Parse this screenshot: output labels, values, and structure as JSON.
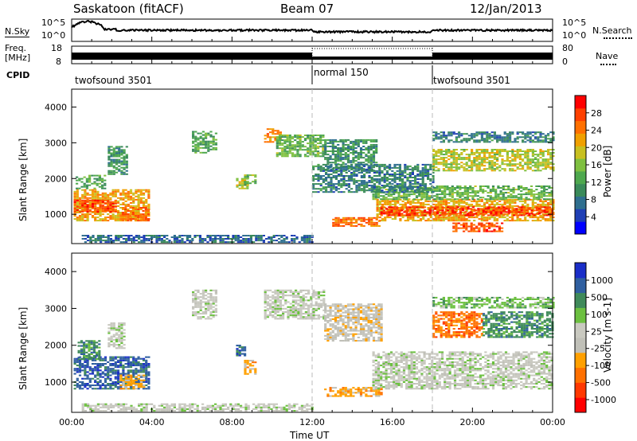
{
  "header": {
    "station": "Saskatoon (fitACF)",
    "beam": "Beam 07",
    "date": "12/Jan/2013"
  },
  "panels": {
    "nsky": {
      "left_label": "N.Sky",
      "left_ticks": [
        "10^5",
        "10^0"
      ],
      "right_ticks": [
        "10^5",
        "10^0"
      ],
      "right_label": "N.Search"
    },
    "freq": {
      "left_label_top": "Freq.",
      "left_label_bottom": "[MHz]",
      "left_ticks": [
        "18",
        "8"
      ],
      "right_ticks": [
        "80",
        "0"
      ],
      "right_label": "Nave"
    },
    "cpid": {
      "label": "CPID",
      "segments": [
        {
          "name": "twofsound 3501",
          "start_h": 0,
          "end_h": 12
        },
        {
          "name": "normal 150",
          "start_h": 12,
          "end_h": 18
        },
        {
          "name": "twofsound 3501",
          "start_h": 18,
          "end_h": 24
        }
      ]
    }
  },
  "colors": {
    "power": [
      "#0000ff",
      "#1f3fb5",
      "#2f6f8f",
      "#3a8a5a",
      "#4ea84e",
      "#7fc040",
      "#c8c020",
      "#f0a000",
      "#ff7000",
      "#ff4000",
      "#ff0000"
    ],
    "velocity": [
      "#1a2ec8",
      "#2f5fa0",
      "#3f8a5a",
      "#6cc040",
      "#c9c9c0",
      "#c0c0b8",
      "#ffa000",
      "#ff7000",
      "#ff3800",
      "#ff0000"
    ]
  },
  "chart_data": [
    {
      "type": "heatmap",
      "name": "power",
      "ylabel": "Slant Range [km]",
      "xlim": [
        0,
        24
      ],
      "ylim": [
        180,
        4500
      ],
      "yticks": [
        1000,
        2000,
        3000,
        4000
      ],
      "colorbar": {
        "label": "Power [dB]",
        "range": [
          0,
          32
        ],
        "ticks": [
          4,
          8,
          12,
          16,
          20,
          24,
          28
        ]
      },
      "regions": [
        {
          "t0": 0.1,
          "t1": 3.8,
          "r0": 800,
          "r1": 1700,
          "value": 22
        },
        {
          "t0": 0.1,
          "t1": 2.2,
          "r0": 1050,
          "r1": 1400,
          "value": 28
        },
        {
          "t0": 2.5,
          "t1": 3.8,
          "r0": 800,
          "r1": 1200,
          "value": 26
        },
        {
          "t0": 0.2,
          "t1": 1.6,
          "r0": 1700,
          "r1": 2100,
          "value": 12
        },
        {
          "t0": 1.8,
          "t1": 2.8,
          "r0": 2100,
          "r1": 2900,
          "value": 10
        },
        {
          "t0": 6.0,
          "t1": 7.2,
          "r0": 2700,
          "r1": 3300,
          "value": 12
        },
        {
          "t0": 8.2,
          "t1": 8.8,
          "r0": 1700,
          "r1": 2000,
          "value": 18
        },
        {
          "t0": 8.6,
          "t1": 9.2,
          "r0": 1800,
          "r1": 2100,
          "value": 14
        },
        {
          "t0": 9.6,
          "t1": 10.4,
          "r0": 3000,
          "r1": 3400,
          "value": 24
        },
        {
          "t0": 10.2,
          "t1": 12.6,
          "r0": 2600,
          "r1": 3200,
          "value": 14
        },
        {
          "t0": 12.6,
          "t1": 15.2,
          "r0": 2200,
          "r1": 3100,
          "value": 10
        },
        {
          "t0": 13.0,
          "t1": 15.4,
          "r0": 650,
          "r1": 900,
          "value": 26
        },
        {
          "t0": 15.2,
          "t1": 24,
          "r0": 800,
          "r1": 1400,
          "value": 22
        },
        {
          "t0": 15.4,
          "t1": 24,
          "r0": 950,
          "r1": 1200,
          "value": 29
        },
        {
          "t0": 15.0,
          "t1": 24,
          "r0": 1400,
          "r1": 1800,
          "value": 14
        },
        {
          "t0": 18.0,
          "t1": 24,
          "r0": 2200,
          "r1": 2800,
          "value": 18
        },
        {
          "t0": 18.0,
          "t1": 24,
          "r0": 3000,
          "r1": 3300,
          "value": 8
        },
        {
          "t0": 12.0,
          "t1": 18,
          "r0": 1600,
          "r1": 2400,
          "value": 8
        },
        {
          "t0": 0.5,
          "t1": 12,
          "r0": 200,
          "r1": 420,
          "value": 6
        },
        {
          "t0": 19.0,
          "t1": 21.5,
          "r0": 500,
          "r1": 750,
          "value": 28
        }
      ]
    },
    {
      "type": "heatmap",
      "name": "velocity",
      "xlabel": "Time UT",
      "ylabel": "Slant Range [km]",
      "xlim": [
        0,
        24
      ],
      "ylim": [
        180,
        4500
      ],
      "yticks": [
        1000,
        2000,
        3000,
        4000
      ],
      "xticks": [
        "00:00",
        "04:00",
        "08:00",
        "12:00",
        "16:00",
        "20:00",
        "00:00"
      ],
      "colorbar": {
        "label": "Velocity [m s-1]",
        "ticks": [
          "1000",
          "500",
          "100",
          "25",
          "-25",
          "-100",
          "-500",
          "-1000"
        ]
      },
      "regions": [
        {
          "t0": 0.1,
          "t1": 3.8,
          "r0": 800,
          "r1": 1700,
          "value": 1
        },
        {
          "t0": 2.4,
          "t1": 3.6,
          "r0": 800,
          "r1": 1200,
          "value": 6
        },
        {
          "t0": 1.8,
          "t1": 2.6,
          "r0": 1900,
          "r1": 2600,
          "value": 4
        },
        {
          "t0": 0.3,
          "t1": 1.4,
          "r0": 1600,
          "r1": 2100,
          "value": 2
        },
        {
          "t0": 6.0,
          "t1": 7.2,
          "r0": 2700,
          "r1": 3500,
          "value": 4
        },
        {
          "t0": 8.2,
          "t1": 8.7,
          "r0": 1700,
          "r1": 2000,
          "value": 1
        },
        {
          "t0": 8.6,
          "t1": 9.2,
          "r0": 1200,
          "r1": 1600,
          "value": 6
        },
        {
          "t0": 9.6,
          "t1": 12.6,
          "r0": 2700,
          "r1": 3500,
          "value": 4
        },
        {
          "t0": 12.6,
          "t1": 15.4,
          "r0": 2100,
          "r1": 3100,
          "value": 5
        },
        {
          "t0": 12.6,
          "t1": 15.4,
          "r0": 600,
          "r1": 850,
          "value": 6
        },
        {
          "t0": 15.0,
          "t1": 24,
          "r0": 800,
          "r1": 1800,
          "value": 4
        },
        {
          "t0": 18.0,
          "t1": 20.5,
          "r0": 2200,
          "r1": 2900,
          "value": 7
        },
        {
          "t0": 20.5,
          "t1": 24,
          "r0": 2200,
          "r1": 2900,
          "value": 2
        },
        {
          "t0": 18.0,
          "t1": 24,
          "r0": 3000,
          "r1": 3300,
          "value": 3
        },
        {
          "t0": 0.5,
          "t1": 12,
          "r0": 200,
          "r1": 400,
          "value": 4
        }
      ]
    }
  ]
}
